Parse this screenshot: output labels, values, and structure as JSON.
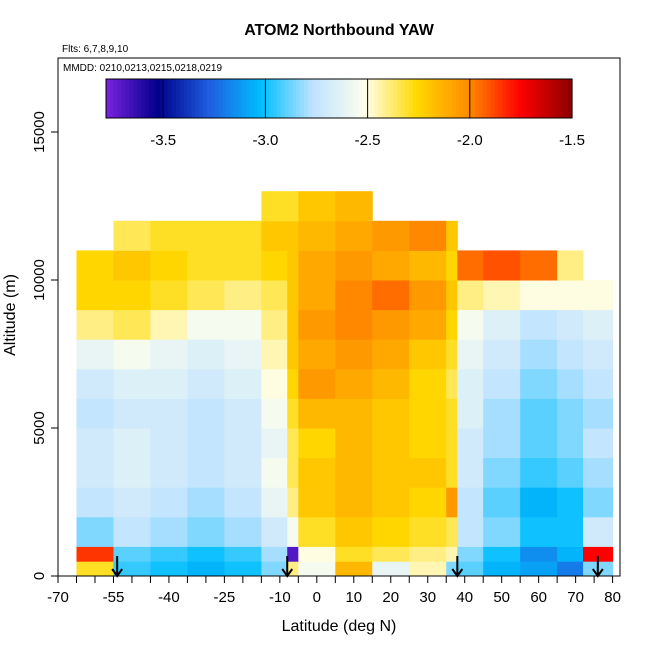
{
  "chart_data": {
    "type": "heatmap",
    "title": "ATOM2 Northbound YAW",
    "annotations": {
      "flights": "Flts: 6,7,8,9,10",
      "dates": "MMDD: 0210,0213,0215,0218,0219"
    },
    "xlabel": "Latitude (deg N)",
    "ylabel": "Altitude (m)",
    "xlim": [
      -70,
      82
    ],
    "ylim": [
      0,
      17500
    ],
    "x_ticks": [
      -70,
      -55,
      -40,
      -25,
      -10,
      0,
      10,
      20,
      30,
      40,
      50,
      60,
      70,
      80
    ],
    "x_tick_labels": [
      "-70",
      "-55",
      "-40",
      "-25",
      "-10",
      "0",
      "10",
      "20",
      "30",
      "40",
      "50",
      "60",
      "70",
      "80"
    ],
    "x_minor_ticks": [
      -65,
      -60,
      -50,
      -45,
      -35,
      -30,
      -20,
      -15,
      -5,
      5,
      15,
      25,
      35,
      45,
      55,
      65,
      75
    ],
    "y_ticks": [
      0,
      5000,
      10000,
      15000
    ],
    "y_tick_labels": [
      "0",
      "5000",
      "10000",
      "15000"
    ],
    "colorbar": {
      "range": [
        -3.78,
        -1.5
      ],
      "ticks": [
        -3.5,
        -3.0,
        -2.5,
        -2.0,
        -1.5
      ],
      "tick_labels": [
        "-3.5",
        "-3.0",
        "-2.5",
        "-2.0",
        "-1.5"
      ],
      "colors": [
        "#7b22e0",
        "#00008b",
        "#1e5fe0",
        "#00bfff",
        "#bfe3ff",
        "#ffffee",
        "#ffd900",
        "#ff8c00",
        "#ff0000",
        "#8b0000"
      ]
    },
    "lat_edges": [
      -65,
      -55,
      -45,
      -35,
      -25,
      -15,
      -8,
      -5,
      5,
      15,
      25,
      35,
      38,
      45,
      55,
      65,
      72,
      80
    ],
    "alt_edges": [
      0,
      500,
      1000,
      2000,
      3000,
      4000,
      5000,
      6000,
      7000,
      8000,
      9000,
      10000,
      11000,
      12000,
      13000
    ],
    "values": [
      [
        -2.3,
        -2.95,
        -3.0,
        -3.05,
        -3.0,
        -2.85,
        -2.4,
        -2.55,
        -2.15,
        -2.6,
        -2.45,
        -2.85,
        -2.9,
        -3.05,
        -3.1,
        -3.2,
        -2.85
      ],
      [
        -1.85,
        -2.9,
        -2.95,
        -3.0,
        -2.95,
        -2.8,
        -3.7,
        -2.5,
        -2.3,
        -2.35,
        -2.4,
        -2.45,
        -2.85,
        -3.0,
        -3.15,
        -3.05,
        -1.75
      ],
      [
        -2.85,
        -2.75,
        -2.8,
        -2.85,
        -2.8,
        -2.7,
        -2.55,
        -2.3,
        -2.2,
        -2.25,
        -2.3,
        -2.35,
        -2.75,
        -2.85,
        -3.0,
        -3.0,
        -2.7
      ],
      [
        -2.75,
        -2.7,
        -2.75,
        -2.8,
        -2.75,
        -2.6,
        -2.4,
        -2.2,
        -2.15,
        -2.2,
        -2.25,
        -2.05,
        -2.75,
        -2.9,
        -3.05,
        -3.0,
        -2.85
      ],
      [
        -2.7,
        -2.65,
        -2.7,
        -2.75,
        -2.7,
        -2.55,
        -2.35,
        -2.2,
        -2.15,
        -2.2,
        -2.2,
        -2.3,
        -2.7,
        -2.85,
        -2.95,
        -2.9,
        -2.8
      ],
      [
        -2.7,
        -2.65,
        -2.7,
        -2.75,
        -2.7,
        -2.6,
        -2.35,
        -2.25,
        -2.15,
        -2.2,
        -2.25,
        -2.3,
        -2.7,
        -2.8,
        -2.9,
        -2.85,
        -2.75
      ],
      [
        -2.75,
        -2.7,
        -2.7,
        -2.75,
        -2.7,
        -2.55,
        -2.3,
        -2.15,
        -2.15,
        -2.2,
        -2.25,
        -2.3,
        -2.65,
        -2.8,
        -2.9,
        -2.85,
        -2.8
      ],
      [
        -2.7,
        -2.65,
        -2.65,
        -2.7,
        -2.65,
        -2.5,
        -2.25,
        -2.05,
        -2.1,
        -2.15,
        -2.25,
        -2.35,
        -2.65,
        -2.75,
        -2.85,
        -2.8,
        -2.75
      ],
      [
        -2.6,
        -2.55,
        -2.6,
        -2.65,
        -2.6,
        -2.45,
        -2.2,
        -2.1,
        -2.05,
        -2.1,
        -2.2,
        -2.3,
        -2.6,
        -2.7,
        -2.8,
        -2.75,
        -2.7
      ],
      [
        -2.4,
        -2.35,
        -2.45,
        -2.55,
        -2.55,
        -2.4,
        -2.2,
        -2.05,
        -2.0,
        -2.05,
        -2.1,
        -2.25,
        -2.55,
        -2.65,
        -2.75,
        -2.7,
        -2.65
      ],
      [
        -2.25,
        -2.25,
        -2.3,
        -2.35,
        -2.4,
        -2.35,
        -2.2,
        -2.1,
        -2.0,
        -1.95,
        -2.05,
        -2.2,
        -2.4,
        -2.45,
        -2.5,
        -2.5,
        -2.5
      ],
      [
        -2.25,
        -2.2,
        -2.25,
        -2.3,
        -2.3,
        -2.25,
        -2.2,
        -2.1,
        -2.05,
        -2.1,
        -2.15,
        -2.25,
        -1.95,
        -1.9,
        -1.95,
        -2.4,
        null
      ],
      [
        null,
        -2.35,
        -2.3,
        -2.3,
        -2.3,
        -2.2,
        -2.2,
        -2.15,
        -2.1,
        -2.05,
        -2.0,
        -2.2,
        null,
        null,
        null,
        null,
        null
      ],
      [
        null,
        null,
        null,
        null,
        null,
        -2.3,
        -2.3,
        -2.2,
        -2.15,
        null,
        null,
        null,
        null,
        null,
        null,
        null,
        null
      ]
    ],
    "arrows_at_lat": [
      -54,
      -8,
      38,
      76
    ]
  }
}
